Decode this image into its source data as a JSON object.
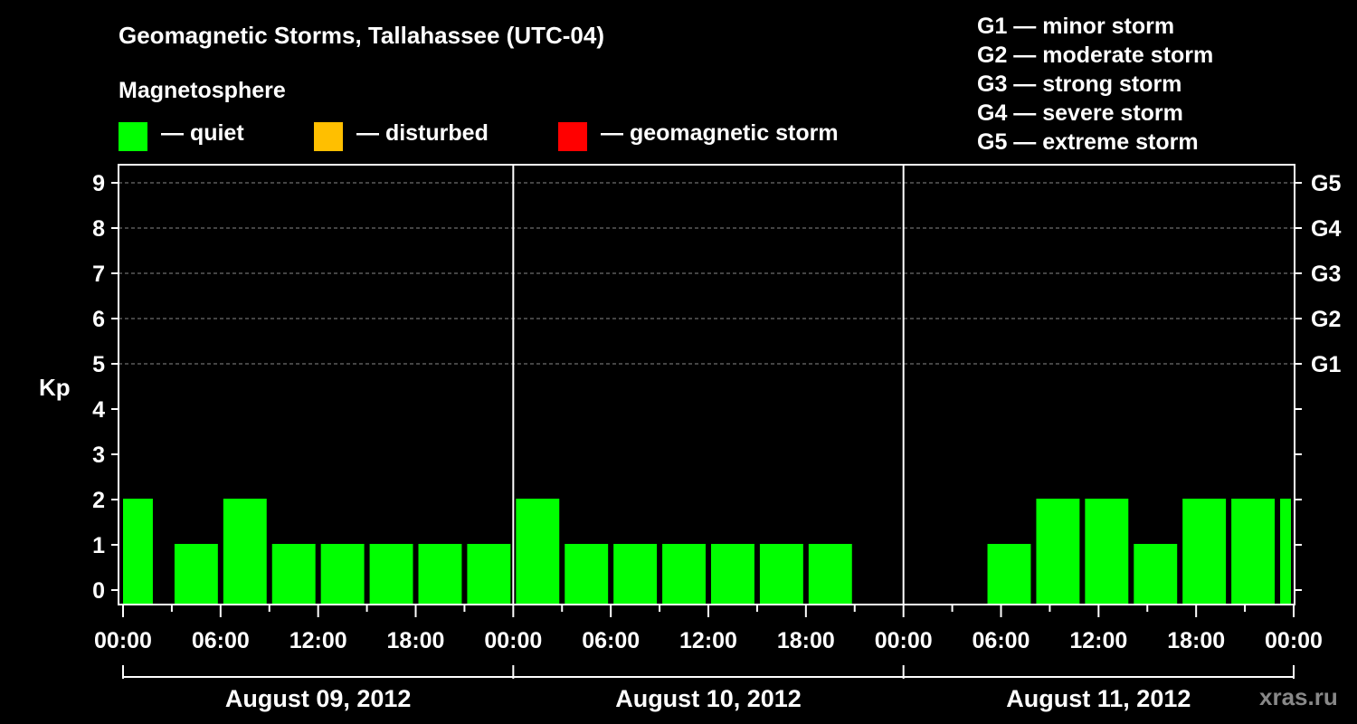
{
  "chart_data": {
    "type": "bar",
    "title": "Geomagnetic Storms, Tallahassee (UTC-04)",
    "ylabel": "Kp",
    "ylim": [
      0,
      9
    ],
    "yticks": [
      "0",
      "1",
      "2",
      "3",
      "4",
      "5",
      "6",
      "7",
      "8",
      "9"
    ],
    "right_axis_labels": [
      {
        "kp": 5,
        "label": "G1"
      },
      {
        "kp": 6,
        "label": "G2"
      },
      {
        "kp": 7,
        "label": "G3"
      },
      {
        "kp": 8,
        "label": "G4"
      },
      {
        "kp": 9,
        "label": "G5"
      }
    ],
    "x_tick_labels": [
      "00:00",
      "06:00",
      "12:00",
      "18:00",
      "00:00",
      "06:00",
      "12:00",
      "18:00",
      "00:00",
      "06:00",
      "12:00",
      "18:00",
      "00:00"
    ],
    "days": [
      "August 09, 2012",
      "August 10, 2012",
      "August 11, 2012"
    ],
    "grid": "dashed at Kp 5-9",
    "legend_placement": "top",
    "bars": [
      {
        "day": 0,
        "start_hour": 0,
        "end_hour": 2,
        "kp": 2
      },
      {
        "day": 0,
        "start_hour": 3,
        "end_hour": 6,
        "kp": 1
      },
      {
        "day": 0,
        "start_hour": 6,
        "end_hour": 9,
        "kp": 2
      },
      {
        "day": 0,
        "start_hour": 9,
        "end_hour": 12,
        "kp": 1
      },
      {
        "day": 0,
        "start_hour": 12,
        "end_hour": 15,
        "kp": 1
      },
      {
        "day": 0,
        "start_hour": 15,
        "end_hour": 18,
        "kp": 1
      },
      {
        "day": 0,
        "start_hour": 18,
        "end_hour": 21,
        "kp": 1
      },
      {
        "day": 0,
        "start_hour": 21,
        "end_hour": 24,
        "kp": 1
      },
      {
        "day": 1,
        "start_hour": 0,
        "end_hour": 3,
        "kp": 2
      },
      {
        "day": 1,
        "start_hour": 3,
        "end_hour": 6,
        "kp": 1
      },
      {
        "day": 1,
        "start_hour": 6,
        "end_hour": 9,
        "kp": 1
      },
      {
        "day": 1,
        "start_hour": 9,
        "end_hour": 12,
        "kp": 1
      },
      {
        "day": 1,
        "start_hour": 12,
        "end_hour": 15,
        "kp": 1
      },
      {
        "day": 1,
        "start_hour": 15,
        "end_hour": 18,
        "kp": 1
      },
      {
        "day": 1,
        "start_hour": 18,
        "end_hour": 21,
        "kp": 1
      },
      {
        "day": 2,
        "start_hour": 5,
        "end_hour": 8,
        "kp": 1
      },
      {
        "day": 2,
        "start_hour": 8,
        "end_hour": 11,
        "kp": 2
      },
      {
        "day": 2,
        "start_hour": 11,
        "end_hour": 14,
        "kp": 2
      },
      {
        "day": 2,
        "start_hour": 14,
        "end_hour": 17,
        "kp": 1
      },
      {
        "day": 2,
        "start_hour": 17,
        "end_hour": 20,
        "kp": 2
      },
      {
        "day": 2,
        "start_hour": 20,
        "end_hour": 23,
        "kp": 2
      },
      {
        "day": 2,
        "start_hour": 23,
        "end_hour": 24,
        "kp": 2
      }
    ]
  },
  "magnetosphere_label": "Magnetosphere",
  "legend": [
    {
      "label": "— quiet",
      "color": "#00ff00"
    },
    {
      "label": "— disturbed",
      "color": "#ffbf00"
    },
    {
      "label": "— geomagnetic storm",
      "color": "#ff0000"
    }
  ],
  "storm_levels": [
    "G1 — minor storm",
    "G2 — moderate storm",
    "G3 — strong storm",
    "G4 — severe storm",
    "G5 — extreme storm"
  ],
  "watermark": "xras.ru",
  "colors": {
    "quiet": "#00ff00",
    "disturbed": "#ffbf00",
    "storm": "#ff0000",
    "axis": "#ffffff",
    "grid": "#888888"
  }
}
